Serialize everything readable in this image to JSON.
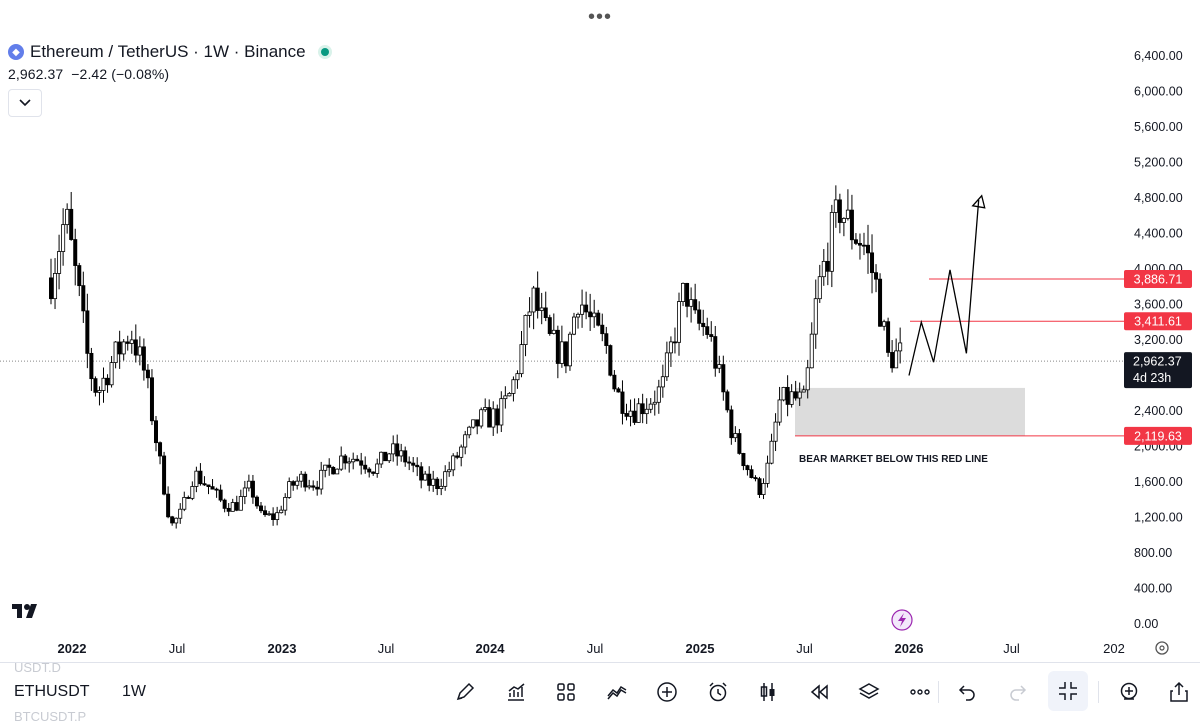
{
  "header": {
    "pair_title": "Ethereum / TetherUS · 1W · Binance",
    "last_price": "2,962.37",
    "change": "−2.42 (−0.08%)"
  },
  "chart_data": {
    "type": "candlestick",
    "symbol": "ETHUSDT",
    "interval": "1W",
    "y_ticks": [
      "6,400.00",
      "6,000.00",
      "5,600.00",
      "5,200.00",
      "4,800.00",
      "4,400.00",
      "4,000.00",
      "3,600.00",
      "3,200.00",
      "2,400.00",
      "2,000.00",
      "1,600.00",
      "1,200.00",
      "800.00",
      "400.00",
      "0.00"
    ],
    "ylim": [
      0,
      6400
    ],
    "x_ticks": [
      "2022",
      "Jul",
      "2023",
      "Jul",
      "2024",
      "Jul",
      "2025",
      "Jul",
      "2026",
      "Jul",
      "202"
    ],
    "close_path": [
      [
        2021.9,
        3900
      ],
      [
        2021.97,
        4600
      ],
      [
        2022.04,
        3600
      ],
      [
        2022.08,
        2900
      ],
      [
        2022.12,
        2600
      ],
      [
        2022.2,
        3000
      ],
      [
        2022.28,
        3300
      ],
      [
        2022.35,
        2800
      ],
      [
        2022.42,
        1800
      ],
      [
        2022.47,
        1100
      ],
      [
        2022.52,
        1250
      ],
      [
        2022.58,
        1700
      ],
      [
        2022.65,
        1550
      ],
      [
        2022.72,
        1350
      ],
      [
        2022.78,
        1330
      ],
      [
        2022.85,
        1550
      ],
      [
        2022.9,
        1220
      ],
      [
        2022.97,
        1200
      ],
      [
        2023.04,
        1550
      ],
      [
        2023.1,
        1650
      ],
      [
        2023.16,
        1580
      ],
      [
        2023.25,
        1800
      ],
      [
        2023.3,
        1900
      ],
      [
        2023.38,
        1850
      ],
      [
        2023.45,
        1750
      ],
      [
        2023.52,
        1950
      ],
      [
        2023.6,
        1850
      ],
      [
        2023.68,
        1600
      ],
      [
        2023.75,
        1580
      ],
      [
        2023.82,
        1800
      ],
      [
        2023.88,
        2050
      ],
      [
        2023.95,
        2300
      ],
      [
        2024.04,
        2350
      ],
      [
        2024.1,
        2600
      ],
      [
        2024.16,
        3200
      ],
      [
        2024.2,
        3700
      ],
      [
        2024.28,
        3200
      ],
      [
        2024.36,
        3000
      ],
      [
        2024.42,
        3700
      ],
      [
        2024.5,
        3300
      ],
      [
        2024.56,
        3100
      ],
      [
        2024.6,
        2600
      ],
      [
        2024.68,
        2400
      ],
      [
        2024.75,
        2500
      ],
      [
        2024.82,
        2650
      ],
      [
        2024.88,
        3300
      ],
      [
        2024.93,
        3800
      ],
      [
        2024.97,
        3400
      ],
      [
        2025.04,
        3300
      ],
      [
        2025.1,
        2700
      ],
      [
        2025.16,
        2100
      ],
      [
        2025.22,
        1800
      ],
      [
        2025.28,
        1500
      ],
      [
        2025.33,
        1800
      ],
      [
        2025.38,
        2500
      ],
      [
        2025.44,
        2550
      ],
      [
        2025.5,
        2500
      ],
      [
        2025.56,
        3700
      ],
      [
        2025.62,
        4300
      ],
      [
        2025.67,
        4700
      ],
      [
        2025.72,
        4450
      ],
      [
        2025.78,
        4300
      ],
      [
        2025.84,
        3850
      ],
      [
        2025.9,
        3000
      ],
      [
        2025.96,
        3050
      ]
    ],
    "horizontal_levels": [
      {
        "value": 3886.71,
        "label": "3,886.71",
        "color": "#f23645"
      },
      {
        "value": 3411.61,
        "label": "3,411.61",
        "color": "#f23645"
      },
      {
        "value": 2119.63,
        "label": "2,119.63",
        "color": "#f23645"
      }
    ],
    "current_price_label": "2,962.37",
    "countdown": "4d 23h",
    "zone": {
      "from": 2119.63,
      "to": 2660
    },
    "annotation": "BEAR MARKET BELOW THIS RED LINE",
    "projection_path": [
      [
        2026.0,
        2800
      ],
      [
        2026.06,
        3400
      ],
      [
        2026.12,
        2950
      ],
      [
        2026.2,
        3990
      ],
      [
        2026.28,
        3050
      ],
      [
        2026.34,
        4780
      ]
    ],
    "accent_up": "#ffffff",
    "accent_down": "#000000",
    "line_color": "#f23645"
  },
  "bottom_bar": {
    "symbol": "ETHUSDT",
    "interval": "1W",
    "ghost_prev": "USDT.D",
    "ghost_next": "BTCUSDT.P"
  },
  "icons": {
    "logo": "tradingview-logo",
    "tools": [
      "pencil-icon",
      "indicators-icon",
      "layout-icon",
      "compare-icon",
      "plus-icon",
      "alarm-icon",
      "candles-icon",
      "replay-icon",
      "layers-icon",
      "more-icon",
      "undo-icon",
      "redo-icon",
      "fullscreen-exit-icon",
      "zoom-icon",
      "share-icon"
    ]
  }
}
